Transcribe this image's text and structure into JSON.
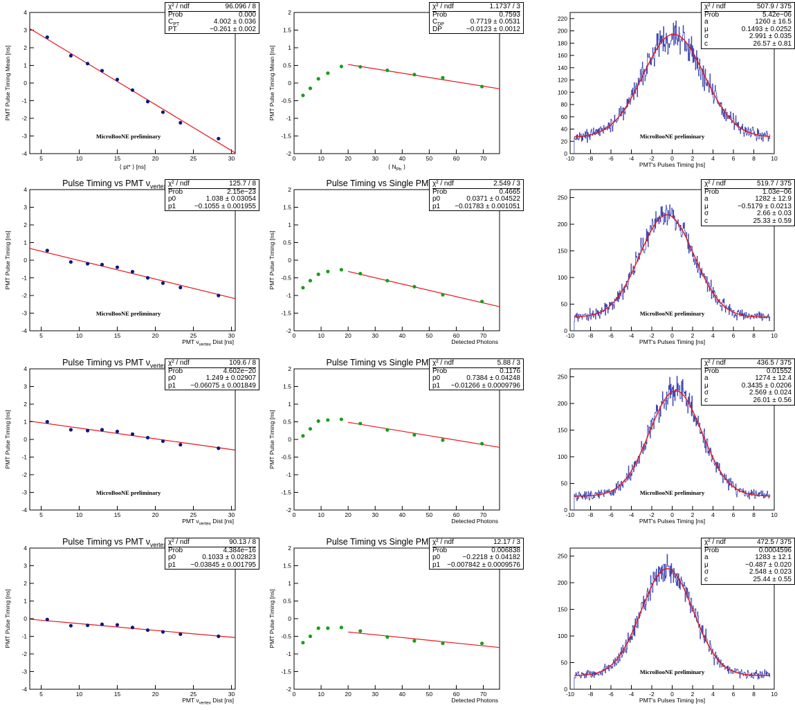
{
  "colors": {
    "fit": "#e8141a",
    "hist": "#4049b3",
    "blue_marker": "#0a1a80",
    "green_marker": "#1a9e1a"
  },
  "chart_data": [
    {
      "type": "scatter",
      "title": "",
      "ylabel": "PMT Pulse Timing Mean [ns]",
      "xlabel": "⟨ pt* ⟩ [ns]",
      "xlim": [
        3.5,
        30.5
      ],
      "ylim": [
        -4,
        4
      ],
      "xticks": [
        5,
        10,
        15,
        20,
        25,
        30
      ],
      "yticks": [
        -4,
        -3,
        -2,
        -1,
        0,
        1,
        2,
        3,
        4
      ],
      "annotation": "MicroBooNE preliminary",
      "marker": "blue",
      "x": [
        5.8,
        8.9,
        11.1,
        13.0,
        15.0,
        17.0,
        19.0,
        21.0,
        23.3,
        28.3
      ],
      "y": [
        2.6,
        1.55,
        1.1,
        0.7,
        0.2,
        -0.4,
        -1.05,
        -1.65,
        -2.25,
        -3.15
      ],
      "fit": {
        "slope": -0.261,
        "intercept": 4.002,
        "xrange": [
          3.5,
          30.5
        ]
      },
      "stats": [
        [
          "χ² / ndf",
          "96.096 / 8"
        ],
        [
          "Prob",
          "0.000"
        ],
        [
          "C_PT",
          "4.002 ± 0.036"
        ],
        [
          "PT",
          "−0.261 ± 0.002"
        ]
      ]
    },
    {
      "type": "scatter",
      "title": "",
      "ylabel": "PMT Pulse Timing Mean [ns]",
      "xlabel": "⟨ N_Ph ⟩",
      "xlim": [
        0,
        76
      ],
      "ylim": [
        -2,
        2
      ],
      "xticks": [
        0,
        10,
        20,
        30,
        40,
        50,
        60,
        70
      ],
      "yticks": [
        -2,
        -1.5,
        -1,
        -0.5,
        0,
        0.5,
        1,
        1.5,
        2
      ],
      "annotation": "",
      "marker": "green",
      "x": [
        3.3,
        6.0,
        9.0,
        12.5,
        17.5,
        24.5,
        34.5,
        44.5,
        55.0,
        69.5
      ],
      "y": [
        -0.35,
        -0.15,
        0.12,
        0.28,
        0.47,
        0.46,
        0.36,
        0.24,
        0.15,
        -0.1
      ],
      "fit": {
        "slope": -0.0123,
        "intercept": 0.7719,
        "xrange": [
          20,
          76
        ]
      },
      "stats": [
        [
          "χ² / ndf",
          "1.1737 / 3"
        ],
        [
          "Prob",
          "0.7593"
        ],
        [
          "C_DP",
          "0.7719 ± 0.0531"
        ],
        [
          "DP",
          "−0.0123 ± 0.0012"
        ]
      ]
    },
    {
      "type": "line",
      "title": "",
      "ylabel": "",
      "xlabel": "PMT's Pulses Timing [ns]",
      "xlim": [
        -10,
        10
      ],
      "ylim": [
        0,
        230
      ],
      "xticks": [
        -10,
        -8,
        -6,
        -4,
        -2,
        0,
        2,
        4,
        6,
        8,
        10
      ],
      "yticks": [
        0,
        20,
        40,
        60,
        80,
        100,
        120,
        140,
        160,
        180,
        200,
        220
      ],
      "annotation": "MicroBooNE preliminary",
      "hist_range": [
        -9.6,
        9.6
      ],
      "gauss": {
        "a": 1260,
        "mu": 0.1493,
        "sigma": 2.991,
        "c": 26.57
      },
      "stats": [
        [
          "χ² / ndf",
          "507.9 / 375"
        ],
        [
          "Prob",
          "5.42e−06"
        ],
        [
          "a",
          "1260 ± 16.5"
        ],
        [
          "μ",
          "0.1493 ± 0.0252"
        ],
        [
          "σ",
          "2.991 ± 0.035"
        ],
        [
          "c",
          "26.57 ± 0.81"
        ]
      ]
    },
    {
      "type": "scatter",
      "title": "Pulse Timing vs PMT ν_vertex Distance",
      "ylabel": "PMT Pulse Timing [ns]",
      "xlabel": "PMT ν_vertex Dist [ns]",
      "xlim": [
        3.5,
        30.5
      ],
      "ylim": [
        -4,
        4
      ],
      "xticks": [
        5,
        10,
        15,
        20,
        25,
        30
      ],
      "yticks": [
        -4,
        -3,
        -2,
        -1,
        0,
        1,
        2,
        3,
        4
      ],
      "annotation": "MicroBooNE preliminary",
      "marker": "blue",
      "x": [
        5.8,
        8.9,
        11.1,
        13.0,
        15.0,
        17.0,
        19.0,
        21.0,
        23.3,
        28.3
      ],
      "y": [
        0.55,
        -0.1,
        -0.2,
        -0.25,
        -0.4,
        -0.65,
        -1.0,
        -1.3,
        -1.55,
        -2.0
      ],
      "fit": {
        "slope": -0.1055,
        "intercept": 1.038,
        "xrange": [
          3.5,
          30.5
        ]
      },
      "stats": [
        [
          "χ² / ndf",
          "125.7 / 8"
        ],
        [
          "Prob",
          "2.15e−23"
        ],
        [
          "p0",
          "1.038 ± 0.03054"
        ],
        [
          "p1",
          "−0.1055 ± 0.001955"
        ]
      ]
    },
    {
      "type": "scatter",
      "title": "Pulse Timing vs Single PMT Ph. Det.",
      "ylabel": "PMT Pulse Timing [ns]",
      "xlabel": "Detected Photons",
      "xlim": [
        0,
        76
      ],
      "ylim": [
        -2,
        2
      ],
      "xticks": [
        0,
        10,
        20,
        30,
        40,
        50,
        60,
        70
      ],
      "yticks": [
        -2,
        -1.5,
        -1,
        -0.5,
        0,
        0.5,
        1,
        1.5,
        2
      ],
      "annotation": "",
      "marker": "green",
      "x": [
        3.3,
        6.0,
        9.0,
        12.5,
        17.5,
        24.5,
        34.5,
        44.5,
        55.0,
        69.5
      ],
      "y": [
        -0.78,
        -0.58,
        -0.4,
        -0.32,
        -0.27,
        -0.38,
        -0.58,
        -0.75,
        -0.98,
        -1.17
      ],
      "fit": {
        "slope": -0.01783,
        "intercept": 0.0371,
        "xrange": [
          20,
          76
        ]
      },
      "stats": [
        [
          "χ² / ndf",
          "2.549 / 3"
        ],
        [
          "Prob",
          "0.4665"
        ],
        [
          "p0",
          "0.0371 ± 0.04522"
        ],
        [
          "p1",
          "−0.01783 ± 0.001051"
        ]
      ]
    },
    {
      "type": "line",
      "title": "",
      "ylabel": "",
      "xlabel": "PMT's Pulses Timing [ns]",
      "xlim": [
        -10,
        10
      ],
      "ylim": [
        0,
        265
      ],
      "xticks": [
        -10,
        -8,
        -6,
        -4,
        -2,
        0,
        2,
        4,
        6,
        8,
        10
      ],
      "yticks": [
        0,
        50,
        100,
        150,
        200,
        250
      ],
      "annotation": "MicroBooNE preliminary",
      "hist_range": [
        -9.6,
        9.6
      ],
      "gauss": {
        "a": 1282,
        "mu": -0.5179,
        "sigma": 2.66,
        "c": 25.33
      },
      "stats": [
        [
          "χ² / ndf",
          "519.7 / 375"
        ],
        [
          "Prob",
          "1.03e−06"
        ],
        [
          "a",
          "1282 ± 12.9"
        ],
        [
          "μ",
          "−0.5179 ± 0.0213"
        ],
        [
          "σ",
          "2.66 ± 0.03"
        ],
        [
          "c",
          "25.33 ± 0.59"
        ]
      ]
    },
    {
      "type": "scatter",
      "title": "Pulse Timing vs PMT ν_vertex Distance",
      "ylabel": "PMT Pulse Timing [ns]",
      "xlabel": "PMT ν_vertex Dist [ns]",
      "xlim": [
        3.5,
        30.5
      ],
      "ylim": [
        -4,
        4
      ],
      "xticks": [
        5,
        10,
        15,
        20,
        25,
        30
      ],
      "yticks": [
        -4,
        -3,
        -2,
        -1,
        0,
        1,
        2,
        3,
        4
      ],
      "annotation": "MicroBooNE preliminary",
      "marker": "blue",
      "x": [
        5.8,
        8.9,
        11.1,
        13.0,
        15.0,
        17.0,
        19.0,
        21.0,
        23.3,
        28.3
      ],
      "y": [
        1.0,
        0.55,
        0.5,
        0.55,
        0.45,
        0.3,
        0.1,
        -0.1,
        -0.3,
        -0.5
      ],
      "fit": {
        "slope": -0.06075,
        "intercept": 1.249,
        "xrange": [
          3.5,
          30.5
        ]
      },
      "stats": [
        [
          "χ² / ndf",
          "109.6 / 8"
        ],
        [
          "Prob",
          "4.602e−20"
        ],
        [
          "p0",
          "1.249 ± 0.02907"
        ],
        [
          "p1",
          "−0.06075 ± 0.001849"
        ]
      ]
    },
    {
      "type": "scatter",
      "title": "Pulse Timing vs Single PMT Ph. Det.",
      "ylabel": "PMT Pulse Timing [ns]",
      "xlabel": "Detected Photons",
      "xlim": [
        0,
        76
      ],
      "ylim": [
        -2,
        2
      ],
      "xticks": [
        0,
        10,
        20,
        30,
        40,
        50,
        60,
        70
      ],
      "yticks": [
        -2,
        -1.5,
        -1,
        -0.5,
        0,
        0.5,
        1,
        1.5,
        2
      ],
      "annotation": "",
      "marker": "green",
      "x": [
        3.3,
        6.0,
        9.0,
        12.5,
        17.5,
        24.5,
        34.5,
        44.5,
        55.0,
        69.5
      ],
      "y": [
        0.1,
        0.3,
        0.52,
        0.55,
        0.57,
        0.45,
        0.27,
        0.13,
        -0.02,
        -0.12
      ],
      "fit": {
        "slope": -0.01266,
        "intercept": 0.7384,
        "xrange": [
          20,
          76
        ]
      },
      "stats": [
        [
          "χ² / ndf",
          "5.88 / 3"
        ],
        [
          "Prob",
          "0.1176"
        ],
        [
          "p0",
          "0.7384 ± 0.04248"
        ],
        [
          "p1",
          "−0.01266 ± 0.0009796"
        ]
      ]
    },
    {
      "type": "line",
      "title": "",
      "ylabel": "",
      "xlabel": "PMT's Pulses Timing [ns]",
      "xlim": [
        -10,
        10
      ],
      "ylim": [
        0,
        265
      ],
      "xticks": [
        -10,
        -8,
        -6,
        -4,
        -2,
        0,
        2,
        4,
        6,
        8,
        10
      ],
      "yticks": [
        0,
        50,
        100,
        150,
        200,
        250
      ],
      "annotation": "MicroBooNE preliminary",
      "hist_range": [
        -9.6,
        9.6
      ],
      "gauss": {
        "a": 1274,
        "mu": 0.3435,
        "sigma": 2.569,
        "c": 26.01
      },
      "stats": [
        [
          "χ² / ndf",
          "436.5 / 375"
        ],
        [
          "Prob",
          "0.01552"
        ],
        [
          "a",
          "1274 ± 12.4"
        ],
        [
          "μ",
          "0.3435 ± 0.0206"
        ],
        [
          "σ",
          "2.569 ± 0.024"
        ],
        [
          "c",
          "26.01 ± 0.56"
        ]
      ]
    },
    {
      "type": "scatter",
      "title": "Pulse Timing vs PMT ν_vertex Distance",
      "ylabel": "PMT Pulse Timing [ns]",
      "xlabel": "PMT ν_vertex Dist [ns]",
      "xlim": [
        3.5,
        30.5
      ],
      "ylim": [
        -4,
        4
      ],
      "xticks": [
        5,
        10,
        15,
        20,
        25,
        30
      ],
      "yticks": [
        -4,
        -3,
        -2,
        -1,
        0,
        1,
        2,
        3,
        4
      ],
      "annotation": "",
      "marker": "blue",
      "x": [
        5.8,
        8.9,
        11.1,
        13.0,
        15.0,
        17.0,
        19.0,
        21.0,
        23.3,
        28.3
      ],
      "y": [
        -0.05,
        -0.4,
        -0.38,
        -0.32,
        -0.35,
        -0.5,
        -0.65,
        -0.75,
        -0.88,
        -1.0
      ],
      "fit": {
        "slope": -0.03845,
        "intercept": 0.1033,
        "xrange": [
          3.5,
          30.5
        ]
      },
      "stats": [
        [
          "χ² / ndf",
          "90.13 / 8"
        ],
        [
          "Prob",
          "4.384e−16"
        ],
        [
          "p0",
          "0.1033 ± 0.02823"
        ],
        [
          "p1",
          "−0.03845 ± 0.001795"
        ]
      ]
    },
    {
      "type": "scatter",
      "title": "Pulse Timing vs Single PMT Ph. Det.",
      "ylabel": "PMT Pulse Timing [ns]",
      "xlabel": "Detected Photons",
      "xlim": [
        0,
        76
      ],
      "ylim": [
        -2,
        2
      ],
      "xticks": [
        0,
        10,
        20,
        30,
        40,
        50,
        60,
        70
      ],
      "yticks": [
        -2,
        -1.5,
        -1,
        -0.5,
        0,
        0.5,
        1,
        1.5,
        2
      ],
      "annotation": "",
      "marker": "green",
      "x": [
        3.3,
        6.0,
        9.0,
        12.5,
        17.5,
        24.5,
        34.5,
        44.5,
        55.0,
        69.5
      ],
      "y": [
        -0.68,
        -0.5,
        -0.27,
        -0.27,
        -0.25,
        -0.35,
        -0.52,
        -0.63,
        -0.7,
        -0.7
      ],
      "fit": {
        "slope": -0.007842,
        "intercept": -0.2218,
        "xrange": [
          20,
          76
        ]
      },
      "stats": [
        [
          "χ² / ndf",
          "12.17 / 3"
        ],
        [
          "Prob",
          "0.006838"
        ],
        [
          "p0",
          "−0.2218 ± 0.04182"
        ],
        [
          "p1",
          "−0.007842 ± 0.0009576"
        ]
      ]
    },
    {
      "type": "line",
      "title": "",
      "ylabel": "",
      "xlabel": "PMT's Pulses Timing [ns]",
      "xlim": [
        -10,
        10
      ],
      "ylim": [
        0,
        265
      ],
      "xticks": [
        -10,
        -8,
        -6,
        -4,
        -2,
        0,
        2,
        4,
        6,
        8,
        10
      ],
      "yticks": [
        0,
        50,
        100,
        150,
        200,
        250
      ],
      "annotation": "MicroBooNE preliminary",
      "hist_range": [
        -9.6,
        9.6
      ],
      "gauss": {
        "a": 1283,
        "mu": -0.487,
        "sigma": 2.548,
        "c": 25.44
      },
      "stats": [
        [
          "χ² / ndf",
          "472.5 / 375"
        ],
        [
          "Prob",
          "0.0004596"
        ],
        [
          "a",
          "1283 ± 12.1"
        ],
        [
          "μ",
          "−0.487 ± 0.020"
        ],
        [
          "σ",
          "2.548 ± 0.023"
        ],
        [
          "c",
          "25.44 ± 0.55"
        ]
      ]
    }
  ]
}
